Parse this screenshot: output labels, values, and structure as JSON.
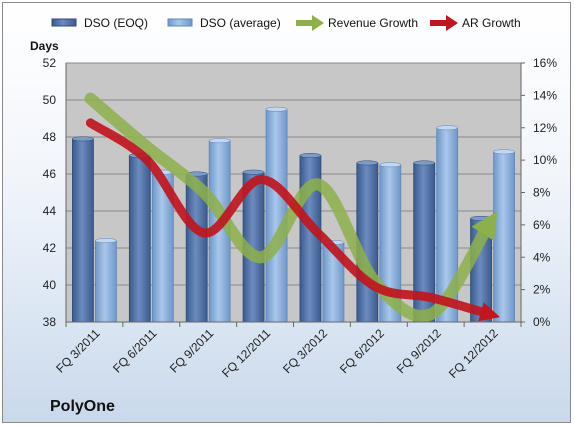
{
  "company": "PolyOne",
  "colors": {
    "dso_eoq": "#4f6fa3",
    "dso_avg": "#8db3e2",
    "revenue_growth": "#8db04a",
    "ar_growth": "#c0161e",
    "plot_bg": "#c7c7c7"
  },
  "chart_data": {
    "type": "bar",
    "title": "",
    "ylabel": "Days",
    "y2label": "",
    "categories": [
      "FQ 3/2011",
      "FQ 6/2011",
      "FQ 9/2011",
      "FQ 12/2011",
      "FQ 3/2012",
      "FQ 6/2012",
      "FQ 9/2012",
      "FQ 12/2012"
    ],
    "ylim": [
      38,
      52
    ],
    "yticks": [
      "38",
      "40",
      "42",
      "44",
      "46",
      "48",
      "50",
      "52"
    ],
    "y2lim": [
      0,
      16
    ],
    "y2ticks": [
      "0%",
      "2%",
      "4%",
      "6%",
      "8%",
      "10%",
      "12%",
      "14%",
      "16%"
    ],
    "grid": true,
    "legend": "top",
    "series": [
      {
        "name": "DSO (EOQ)",
        "kind": "bar",
        "axis": "left",
        "values": [
          47.9,
          47.0,
          46.0,
          46.1,
          47.0,
          46.6,
          46.6,
          43.6
        ]
      },
      {
        "name": "DSO (average)",
        "kind": "bar",
        "axis": "left",
        "values": [
          42.4,
          46.1,
          47.8,
          49.5,
          42.3,
          46.5,
          48.5,
          47.2
        ]
      },
      {
        "name": "Revenue Growth",
        "kind": "line",
        "axis": "right",
        "unit": "%",
        "values": [
          13.8,
          10.8,
          8.0,
          4.0,
          8.5,
          2.5,
          0.5,
          6.0
        ]
      },
      {
        "name": "AR Growth",
        "kind": "line",
        "axis": "right",
        "unit": "%",
        "values": [
          12.3,
          10.0,
          5.5,
          8.8,
          5.5,
          2.2,
          1.5,
          0.5
        ]
      }
    ]
  }
}
